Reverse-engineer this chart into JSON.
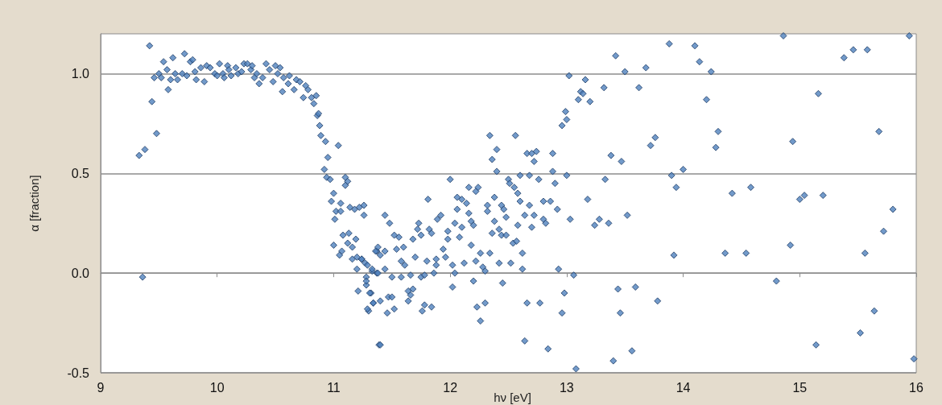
{
  "chart_data": {
    "type": "scatter",
    "xlabel": "hν [eV]",
    "ylabel": "α [fraction]",
    "xlim": [
      9,
      16
    ],
    "xticks": [
      9,
      10,
      11,
      12,
      13,
      14,
      15,
      16
    ],
    "ylim": [
      -0.5,
      1.2
    ],
    "yticks": [
      -0.5,
      {
        "value": 0,
        "label": "0.0"
      },
      0.5,
      {
        "value": 1,
        "label": "1.0"
      }
    ],
    "grid": "y",
    "marker": "diamond",
    "series": [
      {
        "color": "#4f81bd",
        "x": [
          9.33,
          9.38,
          9.36,
          9.42,
          9.44,
          9.48,
          9.46,
          9.5,
          9.52,
          9.54,
          9.57,
          9.58,
          9.6,
          9.62,
          9.64,
          9.66,
          9.7,
          9.72,
          9.74,
          9.77,
          9.79,
          9.81,
          9.82,
          9.86,
          9.89,
          9.91,
          9.94,
          9.98,
          10.0,
          10.02,
          10.05,
          10.06,
          10.09,
          10.1,
          10.12,
          10.16,
          10.18,
          10.21,
          10.23,
          10.26,
          10.29,
          10.3,
          10.32,
          10.34,
          10.36,
          10.39,
          10.42,
          10.45,
          10.48,
          10.5,
          10.52,
          10.54,
          10.56,
          10.57,
          10.61,
          10.62,
          10.66,
          10.68,
          10.71,
          10.74,
          10.76,
          10.78,
          10.81,
          10.83,
          10.85,
          10.86,
          10.87,
          10.88,
          10.89,
          10.93,
          10.95,
          10.92,
          10.94,
          10.97,
          11.04,
          11.0,
          10.98,
          11.1,
          11.12,
          11.1,
          11.06,
          11.02,
          11.06,
          11.01,
          11.14,
          11.18,
          11.22,
          11.26,
          11.26,
          11.0,
          11.07,
          11.05,
          11.08,
          11.13,
          11.12,
          11.16,
          11.19,
          11.16,
          11.2,
          11.2,
          11.24,
          11.27,
          11.28,
          11.28,
          11.21,
          11.32,
          11.34,
          11.3,
          11.33,
          11.37,
          11.37,
          11.39,
          11.24,
          11.29,
          11.33,
          11.36,
          11.38,
          11.4,
          11.44,
          11.38,
          11.28,
          11.31,
          11.34,
          11.29,
          11.4,
          11.4,
          11.46,
          11.47,
          11.5,
          11.44,
          11.48,
          11.44,
          11.52,
          11.56,
          11.54,
          11.6,
          11.58,
          11.61,
          11.5,
          11.58,
          11.66,
          11.64,
          11.66,
          11.64,
          11.52,
          11.68,
          11.7,
          11.68,
          11.73,
          11.72,
          11.75,
          11.75,
          11.78,
          11.8,
          11.76,
          11.78,
          11.84,
          11.81,
          11.82,
          11.84,
          11.86,
          11.88,
          11.88,
          11.89,
          11.92,
          11.94,
          11.96,
          11.98,
          11.98,
          12.0,
          12.02,
          12.02,
          12.04,
          12.04,
          12.06,
          12.06,
          12.08,
          12.1,
          12.1,
          12.14,
          12.12,
          12.16,
          12.16,
          12.18,
          12.2,
          12.18,
          12.2,
          12.22,
          12.22,
          12.24,
          12.23,
          12.26,
          12.26,
          12.28,
          12.3,
          12.3,
          12.32,
          12.32,
          12.34,
          12.36,
          12.34,
          12.36,
          12.38,
          12.38,
          12.4,
          12.4,
          12.42,
          12.44,
          12.44,
          12.46,
          12.48,
          12.48,
          12.45,
          12.42,
          12.5,
          12.51,
          12.52,
          12.54,
          12.55,
          12.56,
          12.57,
          12.58,
          12.58,
          12.6,
          12.6,
          12.62,
          12.62,
          12.64,
          12.64,
          12.66,
          12.66,
          12.68,
          12.68,
          12.7,
          12.7,
          12.72,
          12.72,
          12.74,
          12.76,
          12.77,
          12.8,
          12.8,
          12.82,
          12.84,
          12.86,
          12.88,
          12.88,
          12.9,
          12.92,
          12.93,
          12.96,
          12.96,
          12.98,
          13.0,
          13.03,
          13.06,
          13.08,
          13.18,
          13.02,
          12.99,
          13.0,
          13.1,
          13.12,
          13.14,
          13.16,
          13.2,
          13.24,
          13.28,
          13.32,
          13.33,
          13.36,
          13.38,
          13.4,
          13.42,
          13.44,
          13.46,
          13.47,
          13.5,
          13.52,
          13.56,
          13.59,
          13.62,
          13.68,
          13.72,
          13.76,
          13.78,
          13.88,
          13.9,
          13.92,
          13.94,
          14.0,
          14.1,
          14.14,
          14.2,
          14.24,
          14.28,
          14.3,
          14.36,
          14.42,
          14.54,
          14.58,
          14.8,
          14.86,
          14.92,
          14.94,
          15.0,
          15.04,
          15.14,
          15.16,
          15.2,
          15.38,
          15.46,
          15.52,
          15.56,
          15.58,
          15.64,
          15.68,
          15.72,
          15.8,
          15.94,
          15.98
        ],
        "values": [
          0.59,
          0.62,
          -0.02,
          1.14,
          0.86,
          0.7,
          0.98,
          1.0,
          0.98,
          1.06,
          1.02,
          0.92,
          0.97,
          1.08,
          1.0,
          0.97,
          1.0,
          1.1,
          0.99,
          1.06,
          1.07,
          1.01,
          0.97,
          1.03,
          0.96,
          1.04,
          1.03,
          1.0,
          0.99,
          1.05,
          1.0,
          0.98,
          1.04,
          1.02,
          0.99,
          1.03,
          1.0,
          1.01,
          1.05,
          1.05,
          1.02,
          1.04,
          0.98,
          1.0,
          0.95,
          0.98,
          1.05,
          1.02,
          0.96,
          1.04,
          1.0,
          1.03,
          0.91,
          0.98,
          0.95,
          0.99,
          0.92,
          0.97,
          0.96,
          0.88,
          0.94,
          0.92,
          0.88,
          0.85,
          0.89,
          0.79,
          0.8,
          0.74,
          0.69,
          0.66,
          0.58,
          0.52,
          0.48,
          0.47,
          0.64,
          0.4,
          0.36,
          0.48,
          0.46,
          0.44,
          0.35,
          0.31,
          0.31,
          0.27,
          0.33,
          0.32,
          0.33,
          0.34,
          0.29,
          0.14,
          0.11,
          0.09,
          0.19,
          0.2,
          0.15,
          0.13,
          0.17,
          0.07,
          0.08,
          0.02,
          0.07,
          0.05,
          -0.02,
          -0.06,
          -0.09,
          -0.1,
          -0.15,
          -0.19,
          0.01,
          0.0,
          0.11,
          -0.36,
          0.07,
          0.04,
          0.02,
          0.11,
          0.13,
          0.09,
          0.11,
          0.0,
          -0.04,
          -0.1,
          -0.15,
          -0.18,
          -0.14,
          -0.36,
          -0.2,
          -0.12,
          -0.12,
          0.02,
          0.25,
          0.29,
          0.19,
          0.18,
          0.12,
          0.13,
          0.06,
          0.04,
          -0.02,
          -0.02,
          -0.01,
          -0.09,
          -0.11,
          -0.14,
          -0.18,
          -0.08,
          0.08,
          0.17,
          0.25,
          0.22,
          0.19,
          -0.02,
          -0.01,
          0.06,
          -0.19,
          -0.16,
          -0.17,
          0.37,
          0.22,
          0.2,
          0.0,
          0.07,
          0.04,
          0.27,
          0.29,
          0.12,
          0.08,
          0.21,
          0.17,
          0.47,
          0.04,
          -0.07,
          0.0,
          0.25,
          0.32,
          0.38,
          0.18,
          0.37,
          0.23,
          0.35,
          0.05,
          0.3,
          0.43,
          0.26,
          0.24,
          0.14,
          -0.04,
          0.06,
          0.41,
          0.43,
          -0.17,
          0.1,
          -0.24,
          0.03,
          0.01,
          -0.15,
          0.34,
          0.31,
          0.69,
          0.57,
          0.1,
          0.2,
          0.38,
          0.26,
          0.62,
          0.51,
          0.22,
          0.34,
          0.19,
          0.32,
          0.28,
          0.19,
          -0.05,
          0.05,
          0.47,
          0.45,
          0.05,
          0.15,
          0.43,
          0.69,
          0.16,
          0.4,
          0.24,
          0.36,
          0.49,
          0.1,
          0.02,
          -0.34,
          0.29,
          0.6,
          -0.15,
          0.49,
          0.34,
          0.23,
          0.6,
          0.56,
          0.29,
          0.61,
          0.47,
          -0.15,
          0.36,
          0.27,
          0.25,
          -0.38,
          0.36,
          0.6,
          0.51,
          0.45,
          0.32,
          0.02,
          0.74,
          -0.2,
          -0.1,
          0.49,
          0.27,
          -0.01,
          -0.48,
          0.37,
          0.99,
          0.81,
          0.77,
          0.87,
          0.91,
          0.9,
          0.97,
          0.86,
          0.24,
          0.27,
          0.93,
          0.47,
          0.25,
          0.59,
          -0.44,
          1.09,
          -0.08,
          -0.2,
          0.56,
          1.01,
          0.29,
          -0.39,
          -0.07,
          0.93,
          1.03,
          0.64,
          0.68,
          -0.14,
          1.15,
          0.49,
          0.09,
          0.43,
          0.52,
          1.14,
          1.06,
          0.87,
          1.01,
          0.63,
          0.71,
          0.1,
          0.4,
          0.1,
          0.43,
          -0.04,
          1.19,
          0.14,
          0.66,
          0.37,
          0.39,
          -0.36,
          0.9,
          0.39,
          1.08,
          1.12,
          -0.3,
          0.1,
          1.12,
          -0.19,
          0.71,
          0.21,
          0.32,
          1.19,
          -0.43
        ]
      }
    ]
  }
}
